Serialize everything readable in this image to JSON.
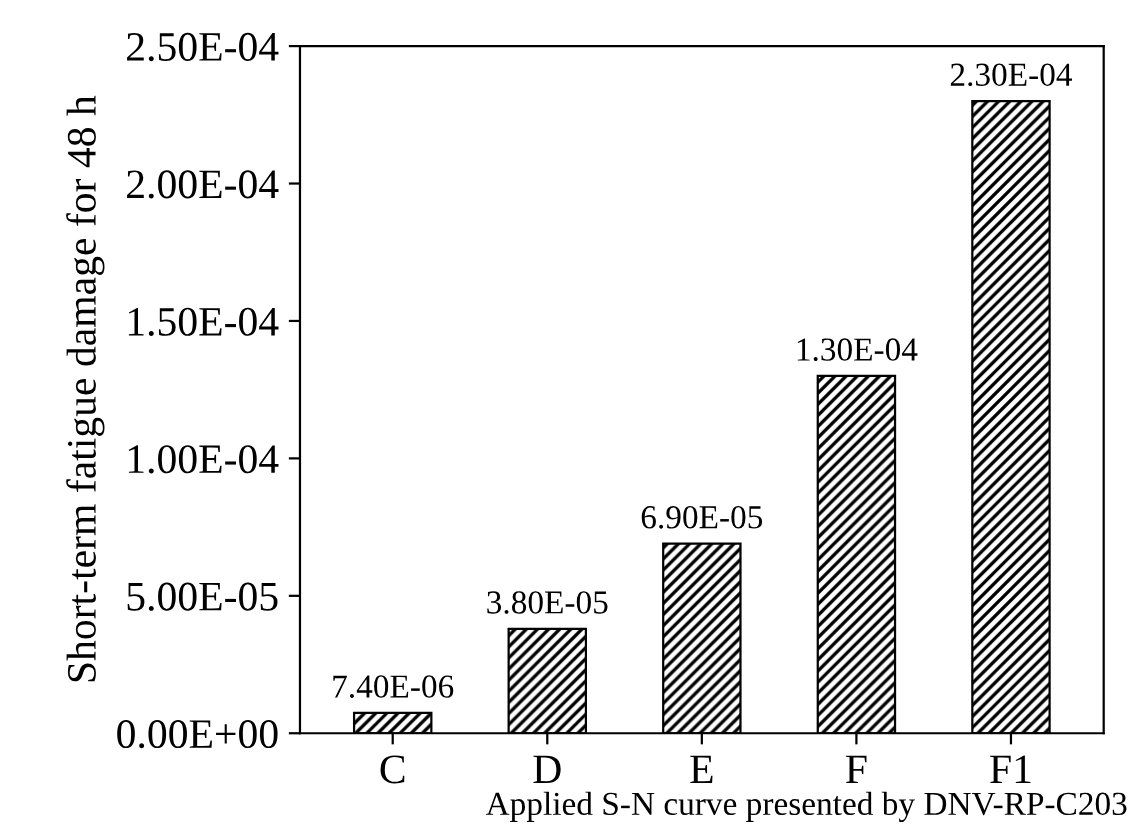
{
  "chart_data": {
    "type": "bar",
    "xlabel": "Applied S-N curve presented by DNV-RP-C203",
    "ylabel": "Short-term fatigue damage for 48 h",
    "categories": [
      "C",
      "D",
      "E",
      "F",
      "F1"
    ],
    "values": [
      7.4e-06,
      3.8e-05,
      6.9e-05,
      0.00013,
      0.00023
    ],
    "value_labels": [
      "7.40E-06",
      "3.80E-05",
      "6.90E-05",
      "1.30E-04",
      "2.30E-04"
    ],
    "color": "#000000",
    "ylim": [
      0,
      0.00025
    ],
    "yticks": [
      {
        "value": 0,
        "label": "0.00E+00"
      },
      {
        "value": 5e-05,
        "label": "5.00E-05"
      },
      {
        "value": 0.0001,
        "label": "1.00E-04"
      },
      {
        "value": 0.00015,
        "label": "1.50E-04"
      },
      {
        "value": 0.0002,
        "label": "2.00E-04"
      },
      {
        "value": 0.00025,
        "label": "2.50E-04"
      }
    ],
    "grid": false,
    "legend": false
  }
}
